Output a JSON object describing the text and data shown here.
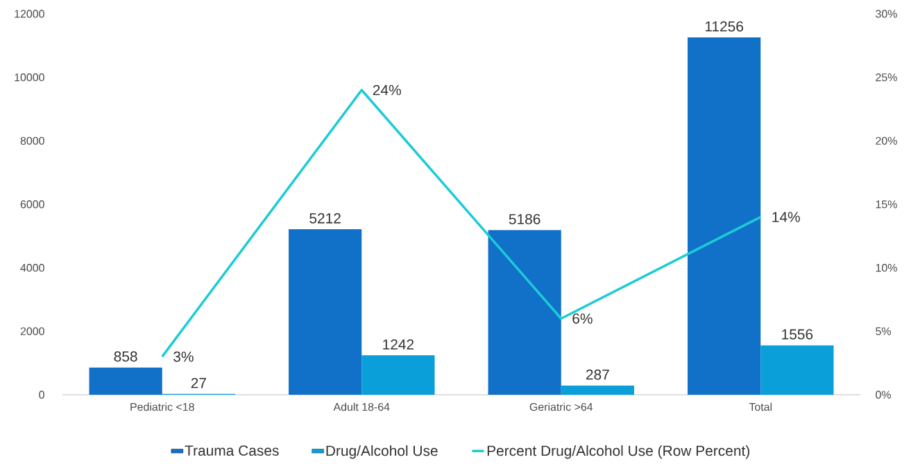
{
  "chart_data": {
    "type": "bar",
    "categories": [
      "Pediatric <18",
      "Adult 18-64",
      "Geriatric >64",
      "Total"
    ],
    "series": [
      {
        "name": "Trauma Cases",
        "color": "#1170c8",
        "values": [
          858,
          5212,
          5186,
          11256
        ],
        "value_labels": [
          "858",
          "5212",
          "5186",
          "11256"
        ]
      },
      {
        "name": "Drug/Alcohol Use",
        "color": "#0a9fd9",
        "values": [
          27,
          1242,
          287,
          1556
        ],
        "value_labels": [
          "27",
          "1242",
          "287",
          "1556"
        ]
      },
      {
        "name": "Percent Drug/Alcohol Use (Row Percent)",
        "type": "line",
        "axis": "y2",
        "color": "#1ccbd6",
        "values": [
          3,
          24,
          6,
          14
        ],
        "value_labels": [
          "3%",
          "24%",
          "6%",
          "14%"
        ]
      }
    ],
    "ylim": [
      0,
      12000
    ],
    "yticks": [
      0,
      2000,
      4000,
      6000,
      8000,
      10000,
      12000
    ],
    "y2lim": [
      0,
      30
    ],
    "y2ticks": [
      {
        "value": 0,
        "label": "0%"
      },
      {
        "value": 5,
        "label": "5%"
      },
      {
        "value": 10,
        "label": "10%"
      },
      {
        "value": 15,
        "label": "15%"
      },
      {
        "value": 20,
        "label": "20%"
      },
      {
        "value": 25,
        "label": "25%"
      },
      {
        "value": 30,
        "label": "30%"
      }
    ],
    "legend": "bottom"
  }
}
